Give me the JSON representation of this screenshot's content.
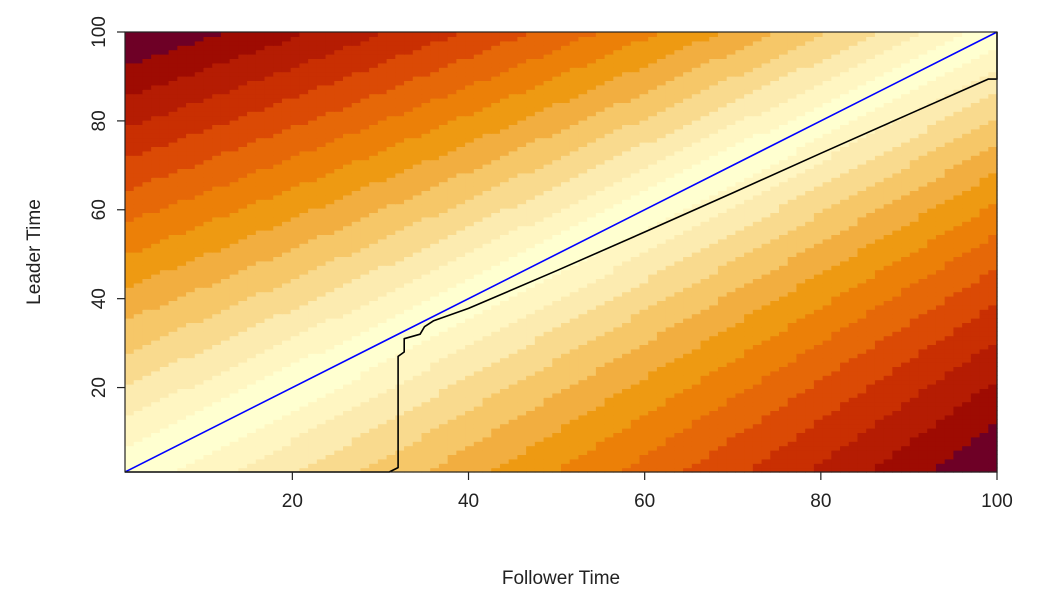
{
  "chart_data": {
    "type": "heatmap",
    "title": "",
    "xlabel": "Follower Time",
    "ylabel": "Leader Time",
    "xlim": [
      1,
      100
    ],
    "ylim": [
      1,
      100
    ],
    "x_ticks": [
      20,
      40,
      60,
      80,
      100
    ],
    "y_ticks": [
      20,
      40,
      60,
      80,
      100
    ],
    "grid": false,
    "legend": "none",
    "colormap": "heat (pale yellow = low cost, dark red = high cost)",
    "palette": [
      "#FFFFD0",
      "#FFF6C2",
      "#FCEBB0",
      "#F9DA8E",
      "#F6C768",
      "#F2AE40",
      "#EE9A12",
      "#EC8008",
      "#E66808",
      "#DB4A05",
      "#C92F02",
      "#B51C03",
      "#9E0B02",
      "#6E0026"
    ],
    "series": [
      {
        "name": "",
        "color": "#0000FF",
        "x": [
          1,
          100
        ],
        "y": [
          1,
          100
        ]
      },
      {
        "name": "",
        "color": "#000000",
        "x": [
          1,
          31,
          32,
          32,
          32.7,
          32.7,
          34.5,
          35,
          36,
          40,
          50,
          60,
          70,
          80,
          90,
          99,
          100,
          100
        ],
        "y": [
          1,
          1,
          2,
          27,
          28,
          31,
          32,
          33.7,
          35,
          37.8,
          46.3,
          55,
          63.8,
          72.7,
          81.5,
          89.4,
          89.4,
          100
        ]
      }
    ]
  }
}
